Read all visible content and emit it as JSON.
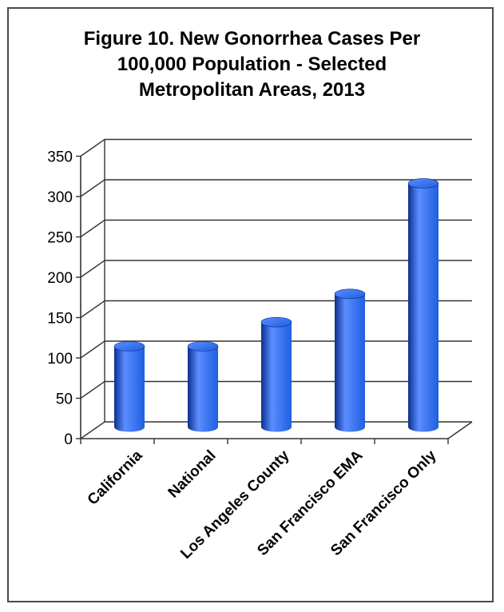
{
  "chart_data": {
    "type": "bar",
    "title_lines": [
      "Figure 10. New Gonorrhea Cases Per",
      "100,000 Population - Selected",
      "Metropolitan Areas, 2013"
    ],
    "categories": [
      "California",
      "National",
      "Los Angeles County",
      "San Francisco EMA",
      "San Francisco Only"
    ],
    "values": [
      100,
      100,
      130,
      165,
      302
    ],
    "yticks": [
      "0",
      "50",
      "100",
      "150",
      "200",
      "250",
      "300",
      "350"
    ],
    "ylim": [
      0,
      350
    ],
    "grid": true,
    "bar_color": "#1f5fe0",
    "bar_highlight": "#5b8dff",
    "bar_shadow": "#0b2f8f"
  }
}
